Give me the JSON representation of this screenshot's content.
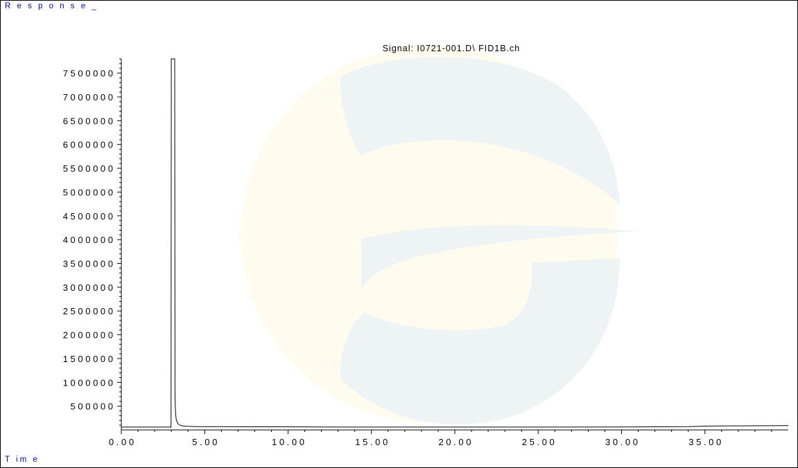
{
  "response_label": "R e s p o n s e _",
  "time_label": "T im e",
  "chart_data": {
    "type": "line",
    "title": "Signal: I0721-001.D\\ FID1B.ch",
    "xlabel": "T im e",
    "ylabel": "R e s p o n s e _",
    "xlim": [
      0,
      40
    ],
    "ylim": [
      0,
      7800000
    ],
    "x_ticks": [
      0,
      5,
      10,
      15,
      20,
      25,
      30,
      35
    ],
    "x_tick_labels": [
      "0 . 0 0",
      "5 . 0 0",
      "1 0 . 0 0",
      "1 5 . 0 0",
      "2 0 . 0 0",
      "2 5 . 0 0",
      "3 0 . 0 0",
      "3 5 . 0 0"
    ],
    "y_ticks": [
      500000,
      1000000,
      1500000,
      2000000,
      2500000,
      3000000,
      3500000,
      4000000,
      4500000,
      5000000,
      5500000,
      6000000,
      6500000,
      7000000,
      7500000
    ],
    "y_tick_labels": [
      "5 0 0 0 0 0",
      "1 0 0 0 0 0 0",
      "1 5 0 0 0 0 0",
      "2 0 0 0 0 0 0",
      "2 5 0 0 0 0 0",
      "3 0 0 0 0 0 0",
      "3 5 0 0 0 0 0",
      "4 0 0 0 0 0 0",
      "4 5 0 0 0 0 0",
      "5 0 0 0 0 0 0",
      "5 5 0 0 0 0 0",
      "6 0 0 0 0 0 0",
      "6 5 0 0 0 0 0",
      "7 0 0 0 0 0 0",
      "7 5 0 0 0 0 0"
    ],
    "grid": false,
    "series": [
      {
        "x": [
          0.0,
          2.9,
          2.98,
          3.0,
          3.02,
          3.05,
          3.08,
          3.12,
          3.15,
          3.18,
          3.2,
          3.22,
          3.25,
          3.3,
          3.4,
          3.5,
          3.7,
          4.0,
          4.5,
          5.0,
          6.0,
          8.0,
          10.0,
          12.0,
          15.0,
          20.0,
          25.0,
          30.0,
          34.0,
          35.0,
          36.0,
          38.0,
          40.0
        ],
        "y": [
          60000,
          60000,
          60000,
          7800000,
          7800000,
          7800000,
          7800000,
          7800000,
          7800000,
          7800000,
          7800000,
          700000,
          350000,
          200000,
          130000,
          100000,
          85000,
          75000,
          70000,
          70000,
          68000,
          65000,
          65000,
          62000,
          60000,
          60000,
          60000,
          62000,
          68000,
          80000,
          85000,
          88000,
          92000
        ]
      }
    ],
    "colors": {
      "axis": "#000000",
      "trace": "#000000",
      "label_blue": "#0000c0",
      "watermark_blue": "#eef3f6",
      "watermark_yellow": "#fffcef"
    }
  }
}
